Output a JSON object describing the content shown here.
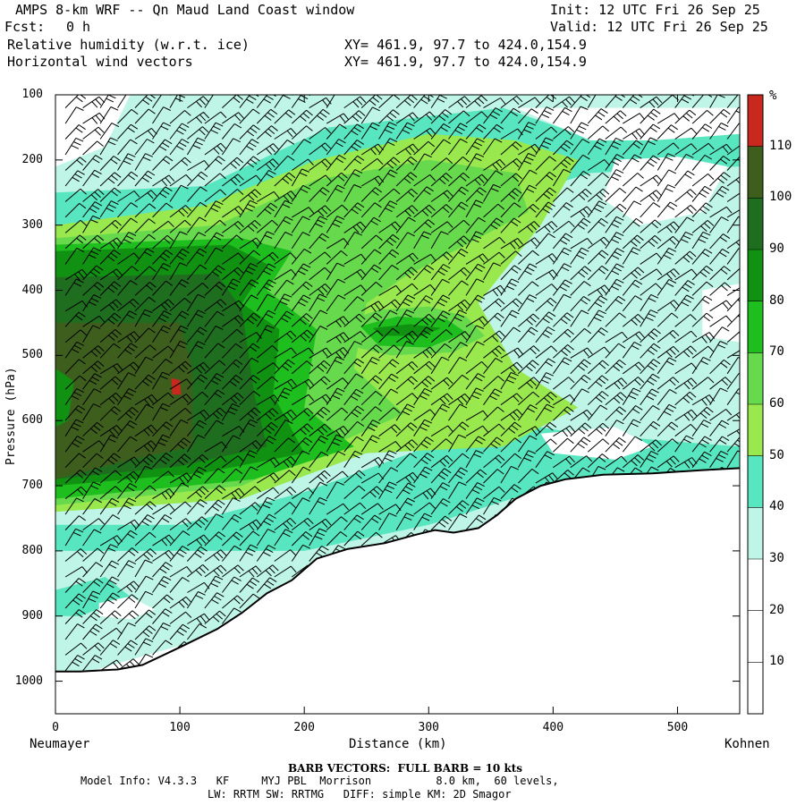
{
  "header": {
    "title": "AMPS 8-km WRF -- Qn Maud Land Coast window",
    "init": "Init: 12 UTC Fri 26 Sep 25",
    "fcst_label": "Fcst:",
    "fcst_value": "0 h",
    "valid": "Valid: 12 UTC Fri 26 Sep 25",
    "field1": "Relative humidity (w.r.t. ice)",
    "field1_xy": "XY= 461.9, 97.7 to 424.0,154.9",
    "field2": "Horizontal wind vectors",
    "field2_xy": "XY= 461.9, 97.7 to 424.0,154.9"
  },
  "chart_data": {
    "type": "heatmap",
    "subtype": "vertical cross-section, filled contours with wind barbs",
    "xlabel": "Distance (km)",
    "ylabel": "Pressure (hPa)",
    "xlim": [
      0,
      550
    ],
    "ylim": [
      1050,
      100
    ],
    "yscale": "linear-inverted",
    "x_ticks": [
      "0",
      "100",
      "200",
      "300",
      "400",
      "500"
    ],
    "y_ticks": [
      "100",
      "200",
      "300",
      "400",
      "500",
      "600",
      "700",
      "800",
      "900",
      "1000"
    ],
    "x_endpoint_labels": [
      "Neumayer",
      "Kohnen"
    ],
    "colorbar": {
      "unit": "%",
      "levels": [
        10,
        20,
        30,
        40,
        50,
        60,
        70,
        80,
        90,
        100,
        110
      ],
      "colors": [
        "#ffffff",
        "#ffffff",
        "#ffffff",
        "#bff5e6",
        "#57e6bf",
        "#99e84d",
        "#66d94d",
        "#1fbe1f",
        "#119111",
        "#1f6e1f",
        "#3e5e1e",
        "#c8281d"
      ]
    },
    "terrain_surface": [
      {
        "x": 0,
        "p": 985
      },
      {
        "x": 20,
        "p": 985
      },
      {
        "x": 50,
        "p": 982
      },
      {
        "x": 70,
        "p": 975
      },
      {
        "x": 100,
        "p": 948
      },
      {
        "x": 130,
        "p": 920
      },
      {
        "x": 150,
        "p": 895
      },
      {
        "x": 170,
        "p": 865
      },
      {
        "x": 190,
        "p": 845
      },
      {
        "x": 210,
        "p": 812
      },
      {
        "x": 235,
        "p": 797
      },
      {
        "x": 265,
        "p": 788
      },
      {
        "x": 290,
        "p": 775
      },
      {
        "x": 305,
        "p": 768
      },
      {
        "x": 320,
        "p": 772
      },
      {
        "x": 340,
        "p": 765
      },
      {
        "x": 355,
        "p": 745
      },
      {
        "x": 370,
        "p": 720
      },
      {
        "x": 390,
        "p": 700
      },
      {
        "x": 410,
        "p": 690
      },
      {
        "x": 440,
        "p": 683
      },
      {
        "x": 480,
        "p": 681
      },
      {
        "x": 520,
        "p": 676
      },
      {
        "x": 550,
        "p": 673
      }
    ],
    "notable_features": [
      {
        "description_value": ">110",
        "x": 96,
        "p": 550
      },
      {
        "description_value": "100-110",
        "x": [
          0,
          110
        ],
        "p": [
          450,
          690
        ]
      },
      {
        "description_value": "90-100",
        "x": [
          262,
          292
        ],
        "p": [
          455,
          465
        ]
      }
    ]
  },
  "footer": {
    "barb_note": "BARB VECTORS:  FULL BARB = 10 kts",
    "model_info": "Model Info: V4.3.3   KF     MYJ PBL  Morrison          8.0 km,  60 levels,",
    "model_info2": "LW: RRTM SW: RRTMG   DIFF: simple KM: 2D Smagor"
  }
}
